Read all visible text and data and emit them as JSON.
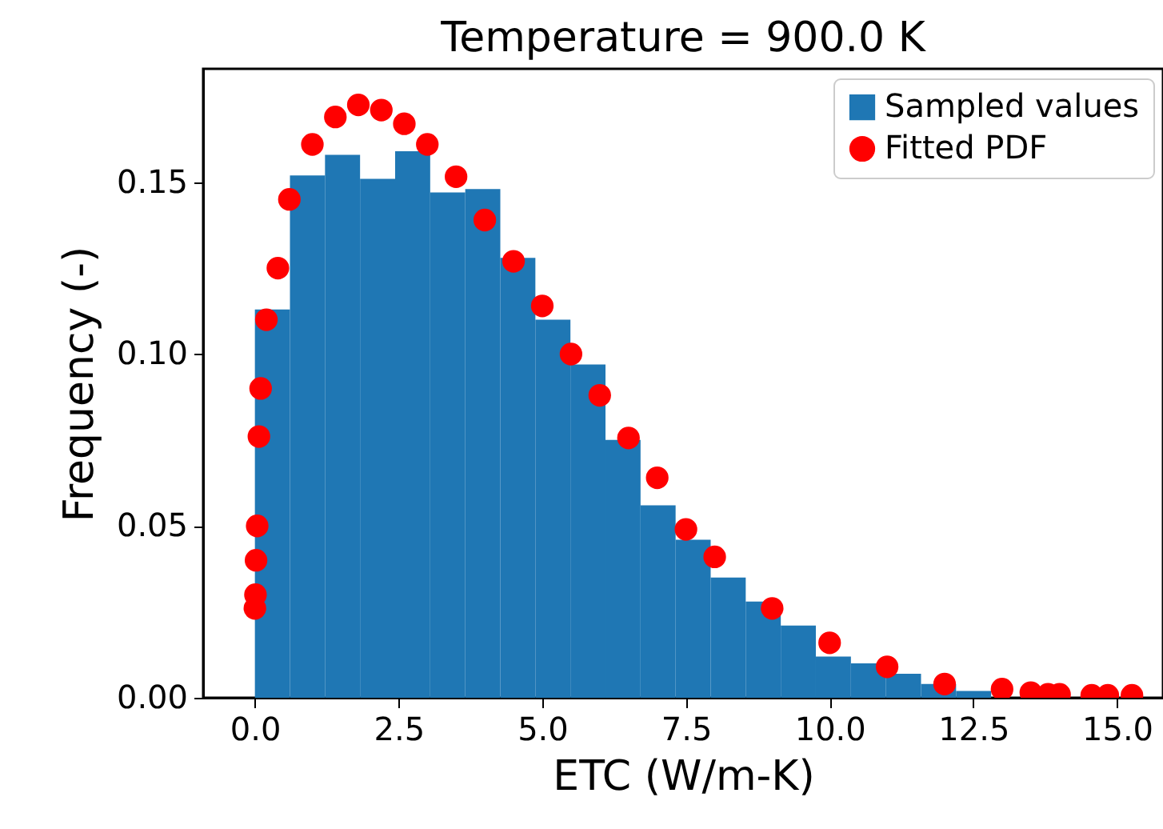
{
  "chart_data": {
    "type": "histogram",
    "title": "Temperature = 900.0 K",
    "xlabel": "ETC (W/m-K)",
    "ylabel": "Frequency (-)",
    "bins": [
      0,
      0.61,
      1.22,
      1.83,
      2.44,
      3.05,
      3.66,
      4.27,
      4.88,
      5.49,
      6.1,
      6.71,
      7.32,
      7.93,
      8.54,
      9.15,
      9.76,
      10.37,
      10.98,
      11.59,
      12.2,
      12.81,
      13.42,
      14.03,
      14.64,
      15.25
    ],
    "series": [
      {
        "name": "Sampled values",
        "color": "#1f77b4",
        "values": [
          0.113,
          0.152,
          0.158,
          0.151,
          0.159,
          0.147,
          0.148,
          0.128,
          0.11,
          0.097,
          0.075,
          0.056,
          0.046,
          0.035,
          0.028,
          0.021,
          0.012,
          0.01,
          0.007,
          0.004,
          0.002,
          null,
          null,
          null,
          null
        ]
      },
      {
        "name": "Fitted PDF",
        "type": "scatter",
        "color": "#ff0000",
        "x": [
          0,
          0.01,
          0.02,
          0.04,
          0.07,
          0.1,
          0.2,
          0.4,
          0.6,
          1.0,
          1.4,
          1.8,
          2.2,
          2.6,
          3.0,
          3.5,
          4.0,
          4.5,
          5.0,
          5.5,
          6.0,
          6.5,
          7.0,
          7.5,
          8.0,
          9.0,
          10.0,
          11.0,
          12.0,
          13.0,
          13.5,
          13.8,
          14.0,
          14.56,
          14.84,
          15.26
        ],
        "values": [
          0.026,
          0.03,
          0.04,
          0.05,
          0.076,
          0.09,
          0.11,
          0.125,
          0.145,
          0.161,
          0.169,
          0.1725,
          0.171,
          0.167,
          0.161,
          0.1516,
          0.139,
          0.127,
          0.114,
          0.1,
          0.088,
          0.0756,
          0.064,
          0.049,
          0.041,
          0.026,
          0.016,
          0.009,
          0.004,
          0.0025,
          0.0015,
          0.001,
          0.001,
          0.0007,
          0.0007,
          0.0007
        ]
      }
    ],
    "marker": "circle",
    "legend": "top right",
    "xlim": [
      -0.9,
      15.8
    ],
    "xticks": [
      {
        "value": 0,
        "label": "0.0"
      },
      {
        "value": 2.5,
        "label": "2.5"
      },
      {
        "value": 5,
        "label": "5.0"
      },
      {
        "value": 7.5,
        "label": "7.5"
      },
      {
        "value": 10,
        "label": "10.0"
      },
      {
        "value": 12.5,
        "label": "12.5"
      },
      {
        "value": 15,
        "label": "15.0"
      }
    ],
    "ylim": [
      0,
      0.183
    ],
    "yticks": [
      {
        "value": 0,
        "label": "0.00"
      },
      {
        "value": 0.05,
        "label": "0.05"
      },
      {
        "value": 0.1,
        "label": "0.10"
      },
      {
        "value": 0.15,
        "label": "0.15"
      }
    ]
  }
}
